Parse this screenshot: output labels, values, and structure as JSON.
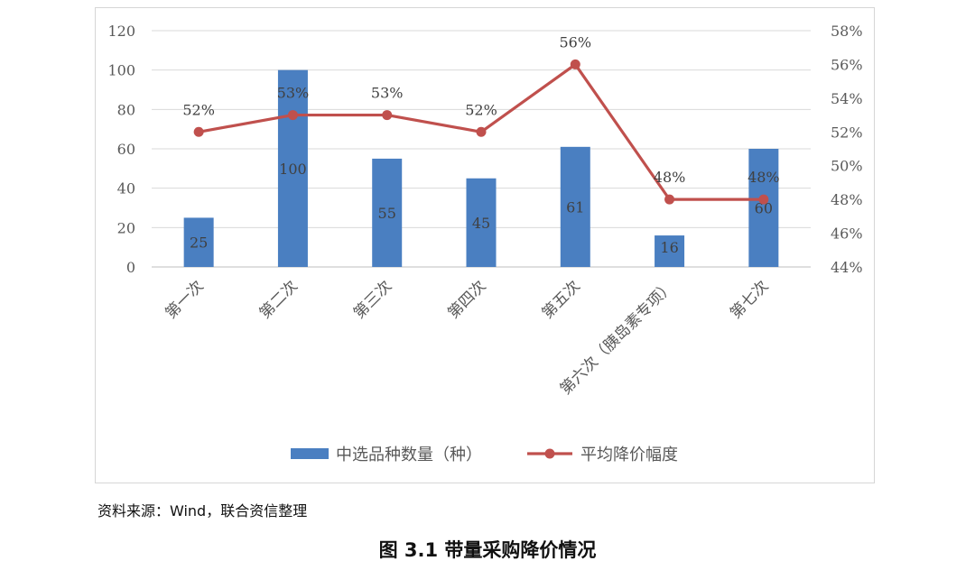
{
  "chart_data": {
    "type": "bar+line",
    "categories": [
      "第一次",
      "第二次",
      "第三次",
      "第四次",
      "第五次",
      "第六次（胰岛素专项）",
      "第七次"
    ],
    "series": [
      {
        "name": "中选品种数量（种）",
        "type": "bar",
        "axis": "left",
        "color": "#4a7fc1",
        "values": [
          25,
          100,
          55,
          45,
          61,
          16,
          60
        ],
        "labels": [
          "25",
          "100",
          "55",
          "45",
          "61",
          "16",
          "60"
        ]
      },
      {
        "name": "平均降价幅度",
        "type": "line",
        "axis": "right",
        "color": "#c0504d",
        "values": [
          52,
          53,
          53,
          52,
          56,
          48,
          48
        ],
        "labels": [
          "52%",
          "53%",
          "53%",
          "52%",
          "56%",
          "48%",
          "48%"
        ]
      }
    ],
    "y_left": {
      "min": 0,
      "max": 120,
      "ticks": [
        "0",
        "20",
        "40",
        "60",
        "80",
        "100",
        "120"
      ]
    },
    "y_right": {
      "min": 44,
      "max": 58,
      "ticks": [
        "44%",
        "46%",
        "48%",
        "50%",
        "52%",
        "54%",
        "56%",
        "58%"
      ]
    },
    "grid": true,
    "legend_position": "bottom"
  },
  "source_note": "资料来源：Wind，联合资信整理",
  "caption": "图 3.1    带量采购降价情况"
}
